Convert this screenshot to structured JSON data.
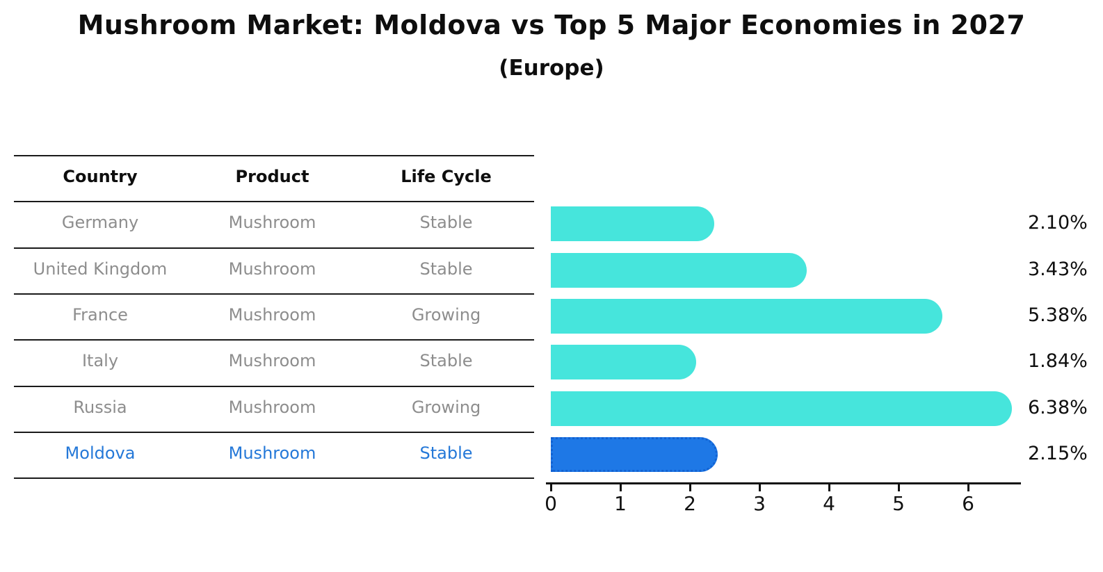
{
  "title": "Mushroom Market: Moldova vs Top 5 Major Economies in 2027",
  "subtitle": "(Europe)",
  "table": {
    "headers": [
      "Country",
      "Product",
      "Life Cycle"
    ],
    "rows": [
      {
        "country": "Germany",
        "product": "Mushroom",
        "life_cycle": "Stable",
        "value": 2.1,
        "value_label": "2.10%",
        "highlight": false
      },
      {
        "country": "United Kingdom",
        "product": "Mushroom",
        "life_cycle": "Stable",
        "value": 3.43,
        "value_label": "3.43%",
        "highlight": false
      },
      {
        "country": "France",
        "product": "Mushroom",
        "life_cycle": "Growing",
        "value": 5.38,
        "value_label": "5.38%",
        "highlight": false
      },
      {
        "country": "Italy",
        "product": "Mushroom",
        "life_cycle": "Stable",
        "value": 1.84,
        "value_label": "1.84%",
        "highlight": false
      },
      {
        "country": "Russia",
        "product": "Mushroom",
        "life_cycle": "Growing",
        "value": 6.38,
        "value_label": "6.38%",
        "highlight": false
      },
      {
        "country": "Moldova",
        "product": "Mushroom",
        "life_cycle": "Stable",
        "value": 2.15,
        "value_label": "2.15%",
        "highlight": true
      }
    ]
  },
  "chart_data": {
    "type": "bar",
    "orientation": "horizontal",
    "title": "Mushroom Market: Moldova vs Top 5 Major Economies in 2027",
    "subtitle": "(Europe)",
    "categories": [
      "Germany",
      "United Kingdom",
      "France",
      "Italy",
      "Russia",
      "Moldova"
    ],
    "values": [
      2.1,
      3.43,
      5.38,
      1.84,
      6.38,
      2.15
    ],
    "data_labels": [
      "2.10%",
      "3.43%",
      "5.38%",
      "1.84%",
      "6.38%",
      "2.15%"
    ],
    "x_ticks": [
      "0",
      "1",
      "2",
      "3",
      "4",
      "5",
      "6"
    ],
    "xlim": [
      0,
      6.75
    ],
    "grid": false,
    "legend": "none",
    "highlight_index": 5,
    "bar_color": "#46e5dc",
    "highlight_color": "#1e78e6",
    "highlight_border_color": "#1262d2",
    "text_color_muted": "#8d8d8d",
    "text_color_highlight": "#2478d8"
  }
}
